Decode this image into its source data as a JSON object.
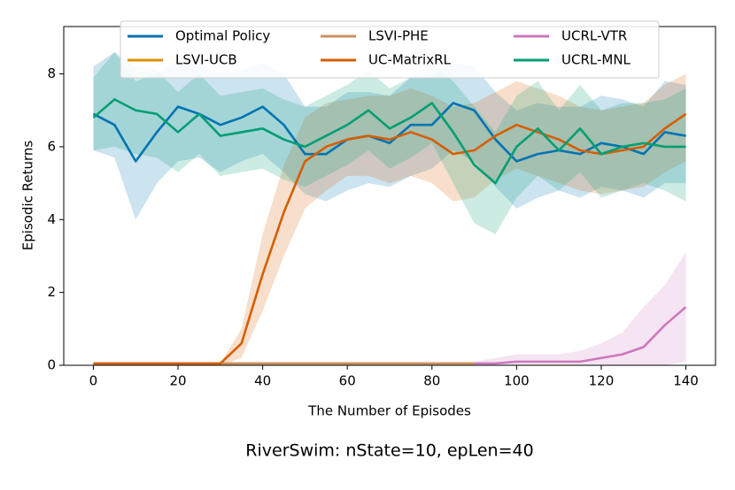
{
  "chart_data": {
    "type": "line",
    "caption": "RiverSwim: nState=10, epLen=40",
    "x_label": "The Number of Episodes",
    "y_label": "Episodic Returns",
    "x": [
      0,
      5,
      10,
      15,
      20,
      25,
      30,
      35,
      40,
      45,
      50,
      55,
      60,
      65,
      70,
      75,
      80,
      85,
      90,
      95,
      100,
      105,
      110,
      115,
      120,
      125,
      130,
      135,
      140
    ],
    "xlim": [
      -7,
      147
    ],
    "ylim": [
      0,
      9.3
    ],
    "xticks": [
      0,
      20,
      40,
      60,
      80,
      100,
      120,
      140
    ],
    "yticks": [
      0,
      2,
      4,
      6,
      8
    ],
    "legend": "top",
    "series": [
      {
        "name": "Optimal Policy",
        "color": "#0173b2",
        "values": [
          6.9,
          6.6,
          5.6,
          6.4,
          7.1,
          6.9,
          6.6,
          6.8,
          7.1,
          6.6,
          5.8,
          5.8,
          6.2,
          6.3,
          6.1,
          6.6,
          6.6,
          7.2,
          7.0,
          6.2,
          5.6,
          5.8,
          5.9,
          5.8,
          6.1,
          6.0,
          5.8,
          6.4,
          6.3
        ],
        "lower": [
          5.9,
          5.7,
          4.0,
          5.0,
          5.6,
          5.7,
          5.3,
          5.6,
          5.8,
          5.3,
          4.7,
          4.5,
          4.8,
          5.0,
          4.9,
          5.2,
          5.4,
          5.9,
          5.6,
          4.9,
          4.3,
          4.6,
          4.8,
          4.6,
          4.9,
          4.8,
          4.6,
          5.0,
          5.0
        ],
        "upper": [
          8.2,
          8.6,
          7.8,
          8.0,
          8.4,
          8.2,
          8.0,
          8.1,
          8.3,
          8.0,
          7.1,
          7.1,
          7.5,
          7.5,
          7.4,
          7.9,
          7.9,
          8.3,
          8.2,
          7.5,
          7.0,
          7.2,
          7.1,
          7.1,
          7.4,
          7.3,
          7.1,
          7.8,
          7.7
        ]
      },
      {
        "name": "LSVI-UCB",
        "color": "#de8f05",
        "values": [
          0.05,
          0.05,
          0.05,
          0.05,
          0.05,
          0.05,
          0.05,
          0.05,
          0.05,
          0.05,
          0.05,
          0.05,
          0.05,
          0.05,
          0.05,
          0.05,
          0.05,
          0.05,
          0.05,
          null,
          null,
          null,
          null,
          null,
          null,
          null,
          null,
          null,
          null
        ]
      },
      {
        "name": "LSVI-PHE",
        "color": "#ca9161",
        "values": [
          0.05,
          0.05,
          0.05,
          0.05,
          0.05,
          0.05,
          0.05,
          0.05,
          0.05,
          0.05,
          0.05,
          0.05,
          0.05,
          0.05,
          0.05,
          0.05,
          0.05,
          0.05,
          0.05,
          null,
          null,
          null,
          null,
          null,
          null,
          null,
          null,
          null,
          null
        ]
      },
      {
        "name": "UC-MatrixRL",
        "color": "#d55e00",
        "values": [
          0.05,
          0.05,
          0.05,
          0.05,
          0.05,
          0.05,
          0.05,
          0.6,
          2.5,
          4.2,
          5.6,
          6.0,
          6.2,
          6.3,
          6.2,
          6.4,
          6.2,
          5.8,
          5.9,
          6.3,
          6.6,
          6.4,
          6.2,
          5.9,
          5.8,
          5.9,
          6.0,
          6.5,
          6.9
        ],
        "lower": [
          0,
          0,
          0,
          0,
          0,
          0,
          0,
          0.2,
          1.5,
          3.0,
          4.3,
          4.8,
          5.2,
          5.2,
          5.0,
          5.2,
          5.0,
          4.5,
          4.6,
          5.1,
          5.4,
          5.2,
          5.0,
          4.8,
          4.7,
          4.8,
          4.9,
          5.3,
          5.6
        ],
        "upper": [
          0.05,
          0.05,
          0.05,
          0.05,
          0.05,
          0.05,
          0.05,
          1.0,
          3.6,
          5.5,
          6.8,
          7.2,
          7.3,
          7.4,
          7.4,
          7.6,
          7.4,
          7.1,
          7.2,
          7.5,
          7.8,
          7.6,
          7.4,
          7.1,
          7.0,
          7.1,
          7.2,
          7.7,
          8.0
        ]
      },
      {
        "name": "UCRL-VTR",
        "color": "#cc78bc",
        "values": [
          null,
          null,
          null,
          null,
          null,
          null,
          null,
          null,
          null,
          null,
          null,
          null,
          null,
          null,
          null,
          null,
          null,
          null,
          0.05,
          0.05,
          0.1,
          0.1,
          0.1,
          0.1,
          0.2,
          0.3,
          0.5,
          1.1,
          1.6
        ],
        "lower": [
          null,
          null,
          null,
          null,
          null,
          null,
          null,
          null,
          null,
          null,
          null,
          null,
          null,
          null,
          null,
          null,
          null,
          null,
          0,
          0,
          0,
          0,
          0,
          0,
          0,
          0,
          0,
          0,
          0.1
        ],
        "upper": [
          null,
          null,
          null,
          null,
          null,
          null,
          null,
          null,
          null,
          null,
          null,
          null,
          null,
          null,
          null,
          null,
          null,
          null,
          0.1,
          0.2,
          0.3,
          0.3,
          0.3,
          0.4,
          0.6,
          0.9,
          1.6,
          2.2,
          3.1
        ]
      },
      {
        "name": "UCRL-MNL",
        "color": "#029e73",
        "values": [
          6.8,
          7.3,
          7.0,
          6.9,
          6.4,
          6.9,
          6.3,
          6.4,
          6.5,
          6.2,
          6.0,
          6.3,
          6.6,
          7.0,
          6.5,
          6.8,
          7.2,
          6.4,
          5.5,
          5.0,
          6.0,
          6.5,
          5.9,
          6.5,
          5.8,
          6.0,
          6.1,
          6.0,
          6.0
        ],
        "lower": [
          5.9,
          6.0,
          5.8,
          5.7,
          5.3,
          5.8,
          5.2,
          5.3,
          5.4,
          5.1,
          4.9,
          5.2,
          5.5,
          5.9,
          5.4,
          5.7,
          6.1,
          5.0,
          3.9,
          3.6,
          4.6,
          5.2,
          4.8,
          5.3,
          4.6,
          4.8,
          5.0,
          4.8,
          4.5
        ],
        "upper": [
          7.9,
          8.6,
          8.2,
          8.1,
          7.5,
          8.0,
          7.4,
          7.5,
          7.6,
          7.3,
          7.1,
          7.4,
          7.7,
          8.1,
          7.6,
          7.9,
          8.3,
          7.8,
          7.1,
          6.4,
          7.4,
          7.8,
          7.0,
          7.7,
          7.0,
          7.2,
          7.2,
          7.3,
          7.6
        ]
      }
    ]
  }
}
